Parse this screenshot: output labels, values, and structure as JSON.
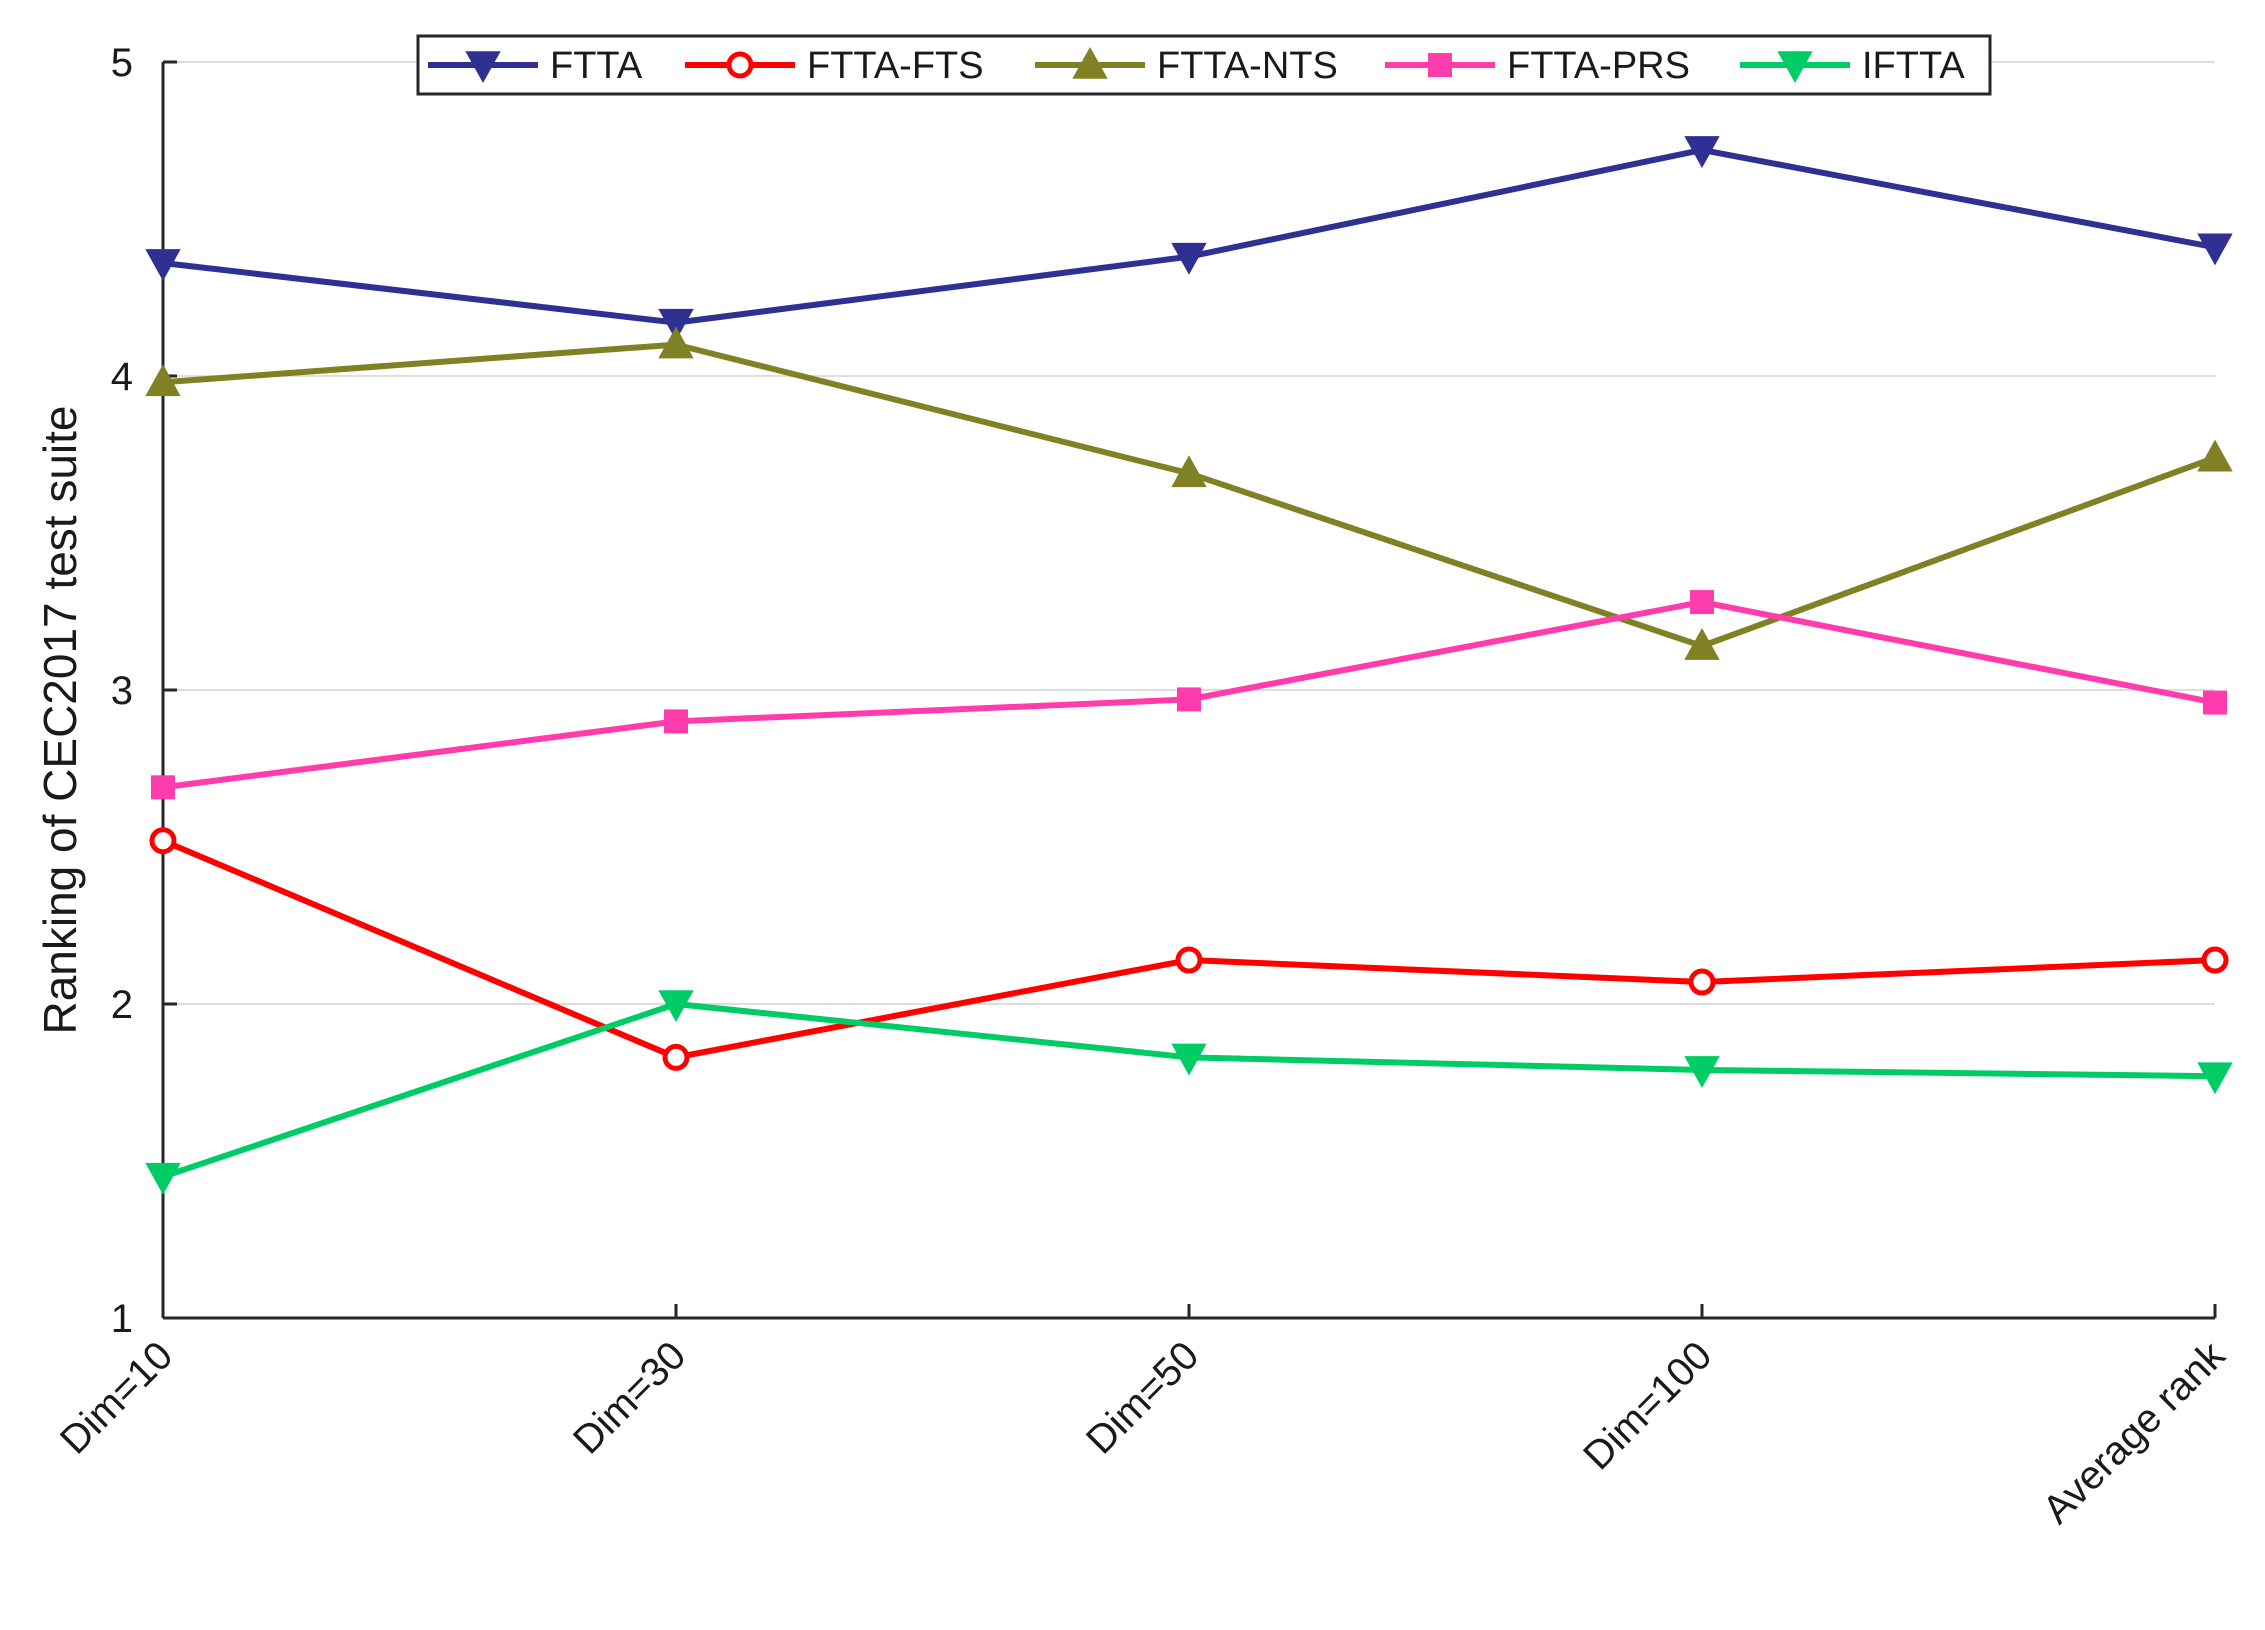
{
  "chart_data": {
    "type": "line",
    "title": "",
    "xlabel": "",
    "ylabel": "Ranking of CEC2017 test suite",
    "categories": [
      "Dim=10",
      "Dim=30",
      "Dim=50",
      "Dim=100",
      "Average rank"
    ],
    "ylim": [
      1,
      5
    ],
    "yticks": [
      1,
      2,
      3,
      4,
      5
    ],
    "grid": true,
    "legend": "top, horizontal",
    "series": [
      {
        "name": "FTTA",
        "color": "#2e3192",
        "marker": "triangle-down",
        "values": [
          4.36,
          4.17,
          4.38,
          4.72,
          4.41
        ]
      },
      {
        "name": "FTTA-FTS",
        "color": "#ff0000",
        "marker": "circle",
        "values": [
          2.52,
          1.83,
          2.14,
          2.07,
          2.14
        ]
      },
      {
        "name": "FTTA-NTS",
        "color": "#808024",
        "marker": "triangle-up",
        "values": [
          3.98,
          4.1,
          3.69,
          3.14,
          3.74
        ]
      },
      {
        "name": "FTTA-PRS",
        "color": "#ff3cac",
        "marker": "square",
        "values": [
          2.69,
          2.9,
          2.97,
          3.28,
          2.96
        ]
      },
      {
        "name": "IFTTA",
        "color": "#00cc66",
        "marker": "triangle-down",
        "values": [
          1.45,
          2.0,
          1.83,
          1.79,
          1.77
        ]
      }
    ]
  }
}
